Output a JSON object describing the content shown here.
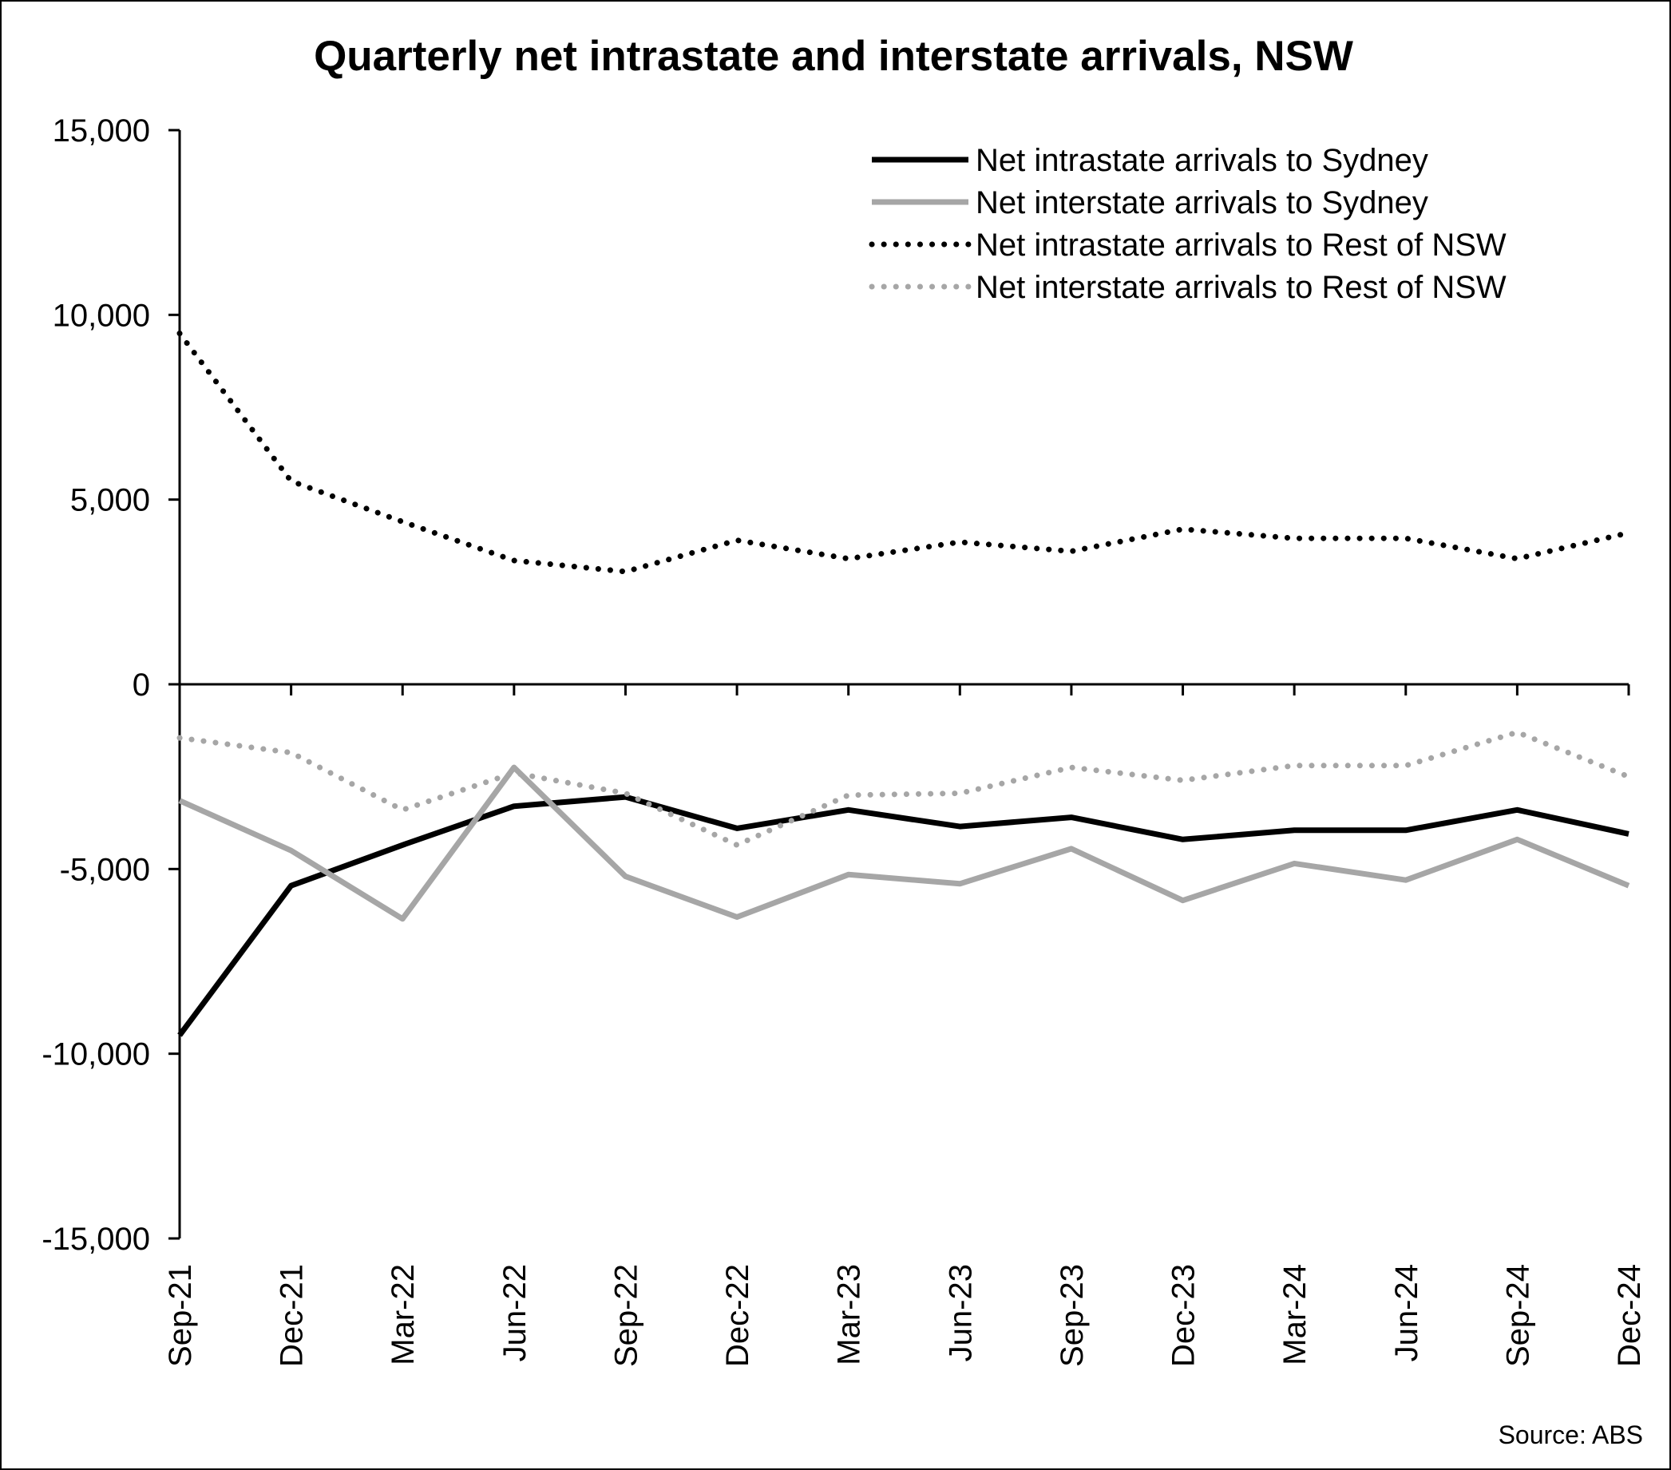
{
  "chart_data": {
    "type": "line",
    "title": "Quarterly net intrastate and interstate arrivals, NSW",
    "xlabel": "",
    "ylabel": "",
    "source": "Source: ABS",
    "categories": [
      "Sep-21",
      "Dec-21",
      "Mar-22",
      "Jun-22",
      "Sep-22",
      "Dec-22",
      "Mar-23",
      "Jun-23",
      "Sep-23",
      "Dec-23",
      "Mar-24",
      "Jun-24",
      "Sep-24",
      "Dec-24"
    ],
    "ylim": [
      -15000,
      15000
    ],
    "yticks": [
      15000,
      10000,
      5000,
      0,
      -5000,
      -10000,
      -15000
    ],
    "ytick_labels": [
      "15,000",
      "10,000",
      "5,000",
      "0",
      "-5,000",
      "-10,000",
      "-15,000"
    ],
    "grid": false,
    "legend_position": "top-right",
    "series": [
      {
        "name": "Net intrastate arrivals to Sydney",
        "color": "#000000",
        "style": "solid",
        "values": [
          -9500,
          -5450,
          -4350,
          -3300,
          -3050,
          -3900,
          -3400,
          -3850,
          -3600,
          -4200,
          -3950,
          -3950,
          -3400,
          -4050
        ]
      },
      {
        "name": "Net interstate arrivals to Sydney",
        "color": "#a6a6a6",
        "style": "solid",
        "values": [
          -3150,
          -4500,
          -6350,
          -2250,
          -5200,
          -6300,
          -5150,
          -5400,
          -4450,
          -5850,
          -4850,
          -5300,
          -4200,
          -5450
        ]
      },
      {
        "name": "Net intrastate arrivals to Rest of NSW",
        "color": "#000000",
        "style": "dotted",
        "values": [
          9500,
          5500,
          4400,
          3350,
          3050,
          3900,
          3400,
          3850,
          3600,
          4200,
          3950,
          3950,
          3400,
          4100
        ]
      },
      {
        "name": "Net interstate arrivals to Rest of NSW",
        "color": "#a6a6a6",
        "style": "dotted",
        "values": [
          -1450,
          -1850,
          -3400,
          -2400,
          -2950,
          -4350,
          -3000,
          -2950,
          -2250,
          -2600,
          -2200,
          -2200,
          -1300,
          -2500
        ]
      }
    ]
  }
}
